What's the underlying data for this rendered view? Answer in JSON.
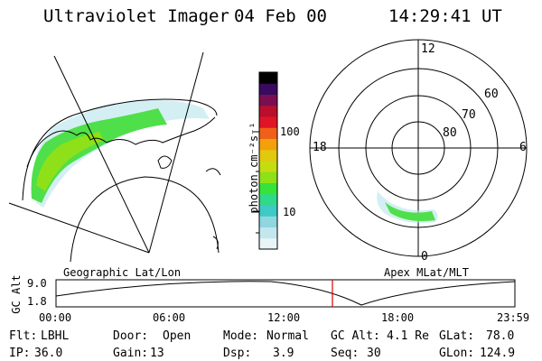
{
  "header": {
    "instrument": "Ultraviolet Imager",
    "date": "04 Feb 00",
    "time": "14:29:41 UT"
  },
  "colorbar": {
    "unit_label": "photon cm⁻²s⁻¹",
    "ticks": [
      "100",
      "10"
    ],
    "scale": "log",
    "colors": [
      "#e8f4f6",
      "#c4e6ee",
      "#8ed6e0",
      "#3ec9c6",
      "#30d98a",
      "#36e33a",
      "#8ee018",
      "#c4dc10",
      "#e2c80c",
      "#f4a00a",
      "#f06018",
      "#e01426",
      "#b8102c",
      "#7a0e52",
      "#3a0a5e",
      "#000000"
    ]
  },
  "left_panel": {
    "label": "Geographic Lat/Lon",
    "oval_colors": [
      "#b0e2ea",
      "#4fdf4a",
      "#8ee018"
    ]
  },
  "right_panel": {
    "label": "Apex MLat/MLT",
    "mlt_labels": [
      "12",
      "18",
      "6",
      "0"
    ],
    "mlat_labels": [
      "60",
      "70",
      "80"
    ]
  },
  "alt_plot": {
    "axis_label": "GC Alt",
    "y_ticks": [
      "9.0",
      "1.8"
    ],
    "x_ticks": [
      "00:00",
      "06:00",
      "12:00",
      "18:00",
      "23:59"
    ],
    "current_time_marker_color": "#e00000"
  },
  "status": {
    "row1": [
      {
        "key": "Flt:",
        "val": "LBHL"
      },
      {
        "key": "Door:",
        "val": "Open"
      },
      {
        "key": "Mode:",
        "val": "Normal"
      },
      {
        "key": "GC Alt:",
        "val": "4.1 Re"
      },
      {
        "key": "GLat:",
        "val": "78.0"
      }
    ],
    "row2": [
      {
        "key": "IP:",
        "val": "36.0"
      },
      {
        "key": "Gain:",
        "val": "13"
      },
      {
        "key": "Dsp:",
        "val": "3.9"
      },
      {
        "key": "Seq:",
        "val": "30"
      },
      {
        "key": "GLon:",
        "val": "124.9"
      }
    ]
  }
}
